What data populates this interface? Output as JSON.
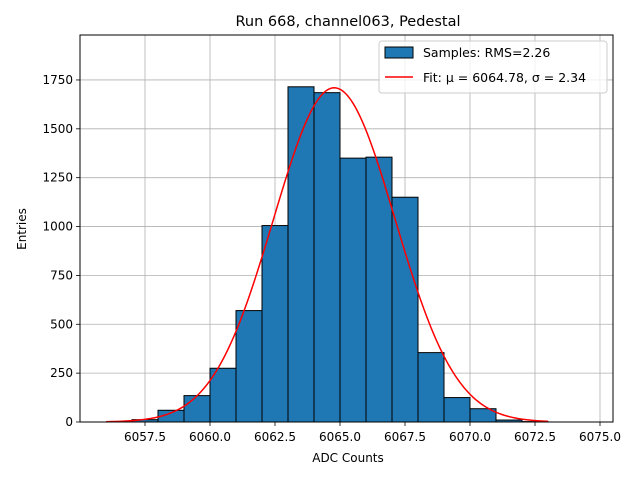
{
  "chart_data": {
    "type": "bar",
    "title": "Run 668, channel063, Pedestal",
    "xlabel": "ADC Counts",
    "ylabel": "Entries",
    "xlim": [
      6055.0,
      6075.5
    ],
    "ylim": [
      0,
      1980
    ],
    "xticks": [
      6057.5,
      6060.0,
      6062.5,
      6065.0,
      6067.5,
      6070.0,
      6072.5,
      6075.0
    ],
    "xtick_labels": [
      "6057.5",
      "6060.0",
      "6062.5",
      "6065.0",
      "6067.5",
      "6070.0",
      "6072.5",
      "6075.0"
    ],
    "yticks": [
      0,
      250,
      500,
      750,
      1000,
      1250,
      1500,
      1750
    ],
    "ytick_labels": [
      "0",
      "250",
      "500",
      "750",
      "1000",
      "1250",
      "1500",
      "1750"
    ],
    "grid": true,
    "legend_position": "top-right",
    "bar_color": "#1f77b4",
    "fit_color": "#ff0000",
    "series": [
      {
        "name": "Samples: RMS=2.26",
        "bin_edges": [
          6057,
          6058,
          6059,
          6060,
          6061,
          6062,
          6063,
          6064,
          6065,
          6066,
          6067,
          6068,
          6069,
          6070,
          6071,
          6072,
          6073
        ],
        "values": [
          12,
          60,
          135,
          275,
          570,
          1005,
          1715,
          1685,
          1350,
          1355,
          1150,
          355,
          125,
          68,
          10,
          2
        ]
      },
      {
        "name": "Fit: μ = 6064.78, σ = 2.34",
        "type": "line",
        "x_range": [
          6056,
          6073
        ],
        "mu": 6064.78,
        "sigma": 2.34,
        "amplitude": 1710
      }
    ]
  }
}
